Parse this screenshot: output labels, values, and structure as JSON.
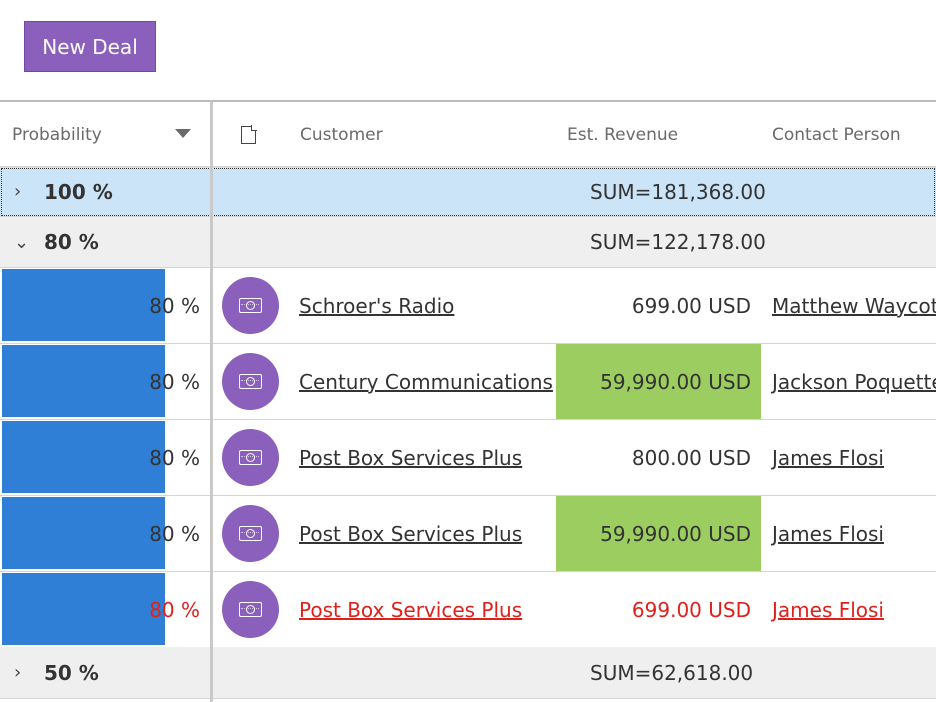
{
  "toolbar": {
    "new_deal_label": "New Deal"
  },
  "colors": {
    "accent": "#8b60bc",
    "bar": "#2f7fd6",
    "highlight": "#9ccd61",
    "warning_text": "#e0201b",
    "selected_group": "#cbe4f7"
  },
  "header": {
    "probability": "Probability",
    "customer": "Customer",
    "revenue": "Est. Revenue",
    "contact": "Contact Person",
    "doc_icon": "document-icon",
    "sort_icon": "sort-down-icon"
  },
  "groups": [
    {
      "label": "100 %",
      "sum": "SUM=181,368.00",
      "expanded": false,
      "chevron": "›"
    },
    {
      "label": "80 %",
      "sum": "SUM=122,178.00",
      "expanded": true,
      "chevron": "⌄"
    },
    {
      "label": "50 %",
      "sum": "SUM=62,618.00",
      "expanded": false,
      "chevron": "›"
    }
  ],
  "rows": [
    {
      "probability": "80 %",
      "probability_value": 0.8,
      "icon": "money-icon",
      "customer": "Schroer's Radio",
      "revenue": "699.00 USD",
      "contact": "Matthew Waycot",
      "highlight": false,
      "warning": false
    },
    {
      "probability": "80 %",
      "probability_value": 0.8,
      "icon": "money-icon",
      "customer": "Century Communications",
      "revenue": "59,990.00 USD",
      "contact": "Jackson Poquette",
      "highlight": true,
      "warning": false
    },
    {
      "probability": "80 %",
      "probability_value": 0.8,
      "icon": "money-icon",
      "customer": "Post Box Services Plus",
      "revenue": "800.00 USD",
      "contact": "James Flosi",
      "highlight": false,
      "warning": false
    },
    {
      "probability": "80 %",
      "probability_value": 0.8,
      "icon": "money-icon",
      "customer": "Post Box Services Plus",
      "revenue": "59,990.00 USD",
      "contact": "James Flosi",
      "highlight": true,
      "warning": false
    },
    {
      "probability": "80 %",
      "probability_value": 0.8,
      "icon": "money-icon",
      "customer": "Post Box Services Plus",
      "revenue": "699.00 USD",
      "contact": "James Flosi",
      "highlight": false,
      "warning": true
    }
  ]
}
